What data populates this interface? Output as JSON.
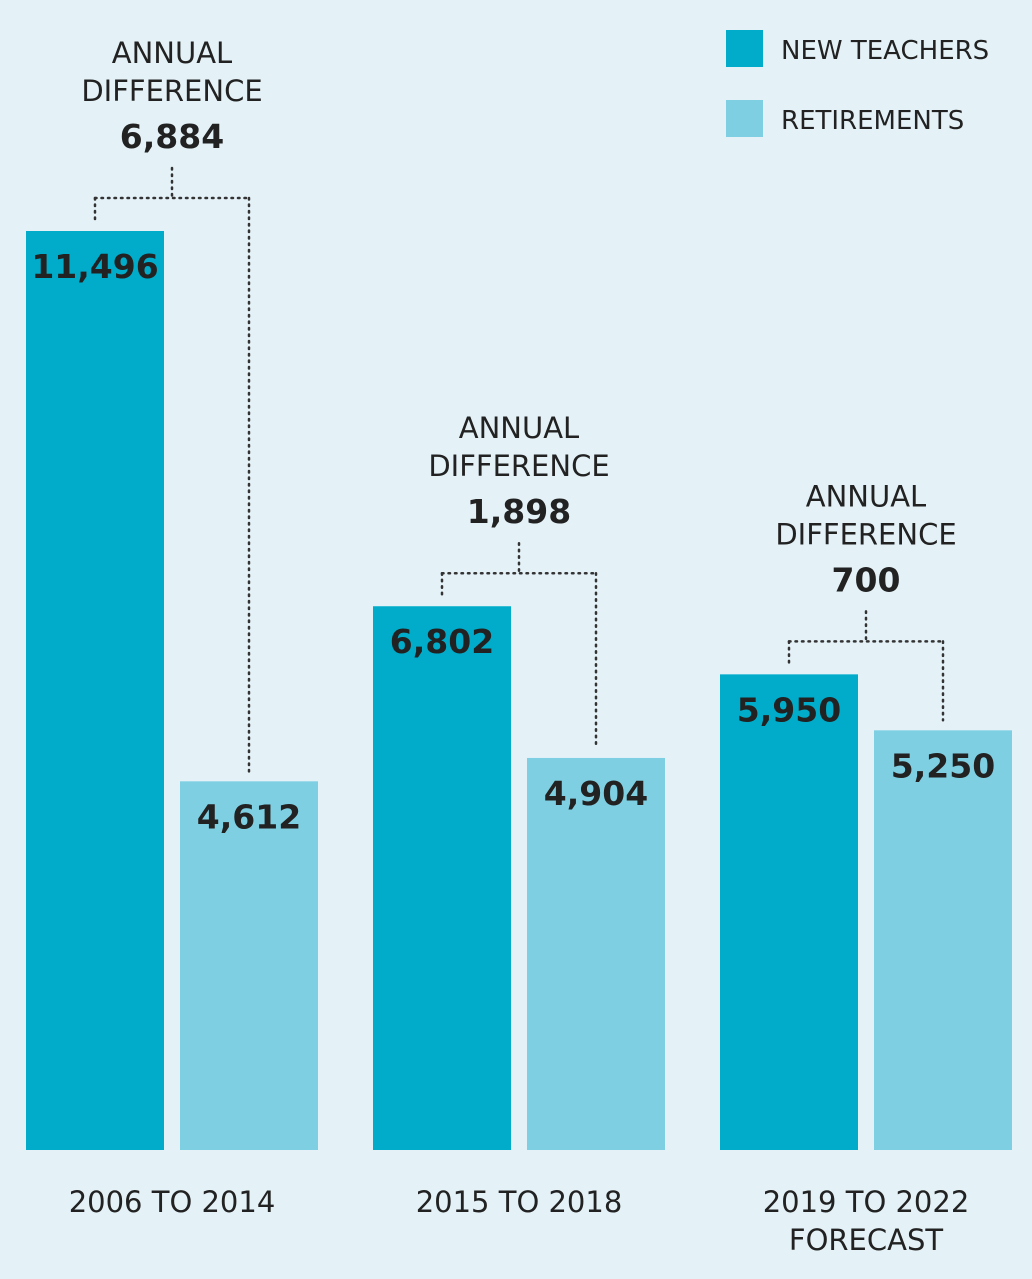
{
  "chart_data": {
    "type": "bar",
    "title": "",
    "xlabel": "",
    "ylabel": "",
    "ylim": [
      0,
      11496
    ],
    "categories": [
      [
        "2006 TO 2014"
      ],
      [
        "2015 TO 2018"
      ],
      [
        "2019 TO 2022",
        "FORECAST"
      ]
    ],
    "series": [
      {
        "name": "NEW TEACHERS",
        "values": [
          11496,
          6802,
          5950
        ],
        "labels": [
          "11,496",
          "6,802",
          "5,950"
        ]
      },
      {
        "name": "RETIREMENTS",
        "values": [
          4612,
          4904,
          5250
        ],
        "labels": [
          "4,612",
          "4,904",
          "5,250"
        ]
      }
    ],
    "annotations": [
      {
        "lines": [
          "ANNUAL",
          "DIFFERENCE"
        ],
        "value": "6,884"
      },
      {
        "lines": [
          "ANNUAL",
          "DIFFERENCE"
        ],
        "value": "1,898"
      },
      {
        "lines": [
          "ANNUAL",
          "DIFFERENCE"
        ],
        "value": "700"
      }
    ],
    "legend_position": "top-right"
  },
  "colors": {
    "background": "#e4f2f8",
    "new_teachers": "#00acc9",
    "retirements": "#7fcfe2",
    "text": "#222222",
    "connector": "#333333"
  }
}
